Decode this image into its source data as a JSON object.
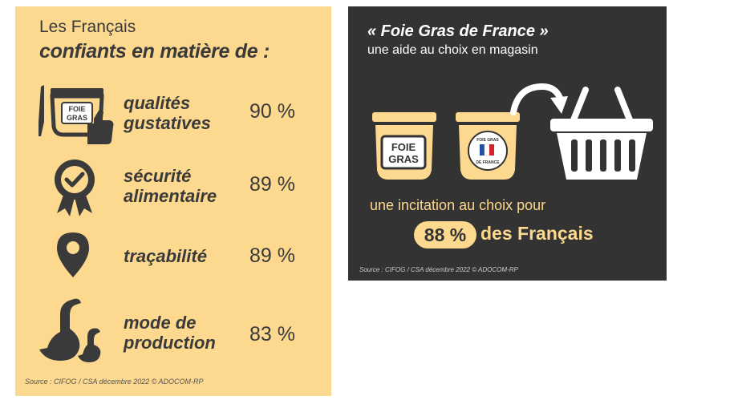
{
  "left": {
    "title_line1": "Les Français",
    "title_line2": "confiants en matière de :",
    "rows": [
      {
        "label": "qualités\ngustatives",
        "value": "90 %",
        "icon": "foie-gras-jar-thumbs-up-icon",
        "jar_text": "FOIE\nGRAS"
      },
      {
        "label": "sécurité\nalimentaire",
        "value": "89 %",
        "icon": "award-badge-check-icon"
      },
      {
        "label": "traçabilité",
        "value": "89 %",
        "icon": "location-pin-icon"
      },
      {
        "label": "mode de\nproduction",
        "value": "83 %",
        "icon": "goose-duck-icon"
      }
    ],
    "source": "Source : CIFOG / CSA décembre 2022 © ADOCOM-RP"
  },
  "right": {
    "title": "« Foie Gras de France »",
    "subtitle": "une aide au choix en magasin",
    "jar_label": "FOIE\nGRAS",
    "seal_text": "FOIE GRAS DE FRANCE",
    "incitation": "une incitation au choix pour",
    "percent": "88 %",
    "des_francais": "des Français",
    "source": "Source : CIFOG / CSA décembre 2022 © ADOCOM-RP"
  },
  "colors": {
    "yellow": "#fdd88f",
    "dark": "#333333",
    "text_dark": "#3a3a3a"
  }
}
